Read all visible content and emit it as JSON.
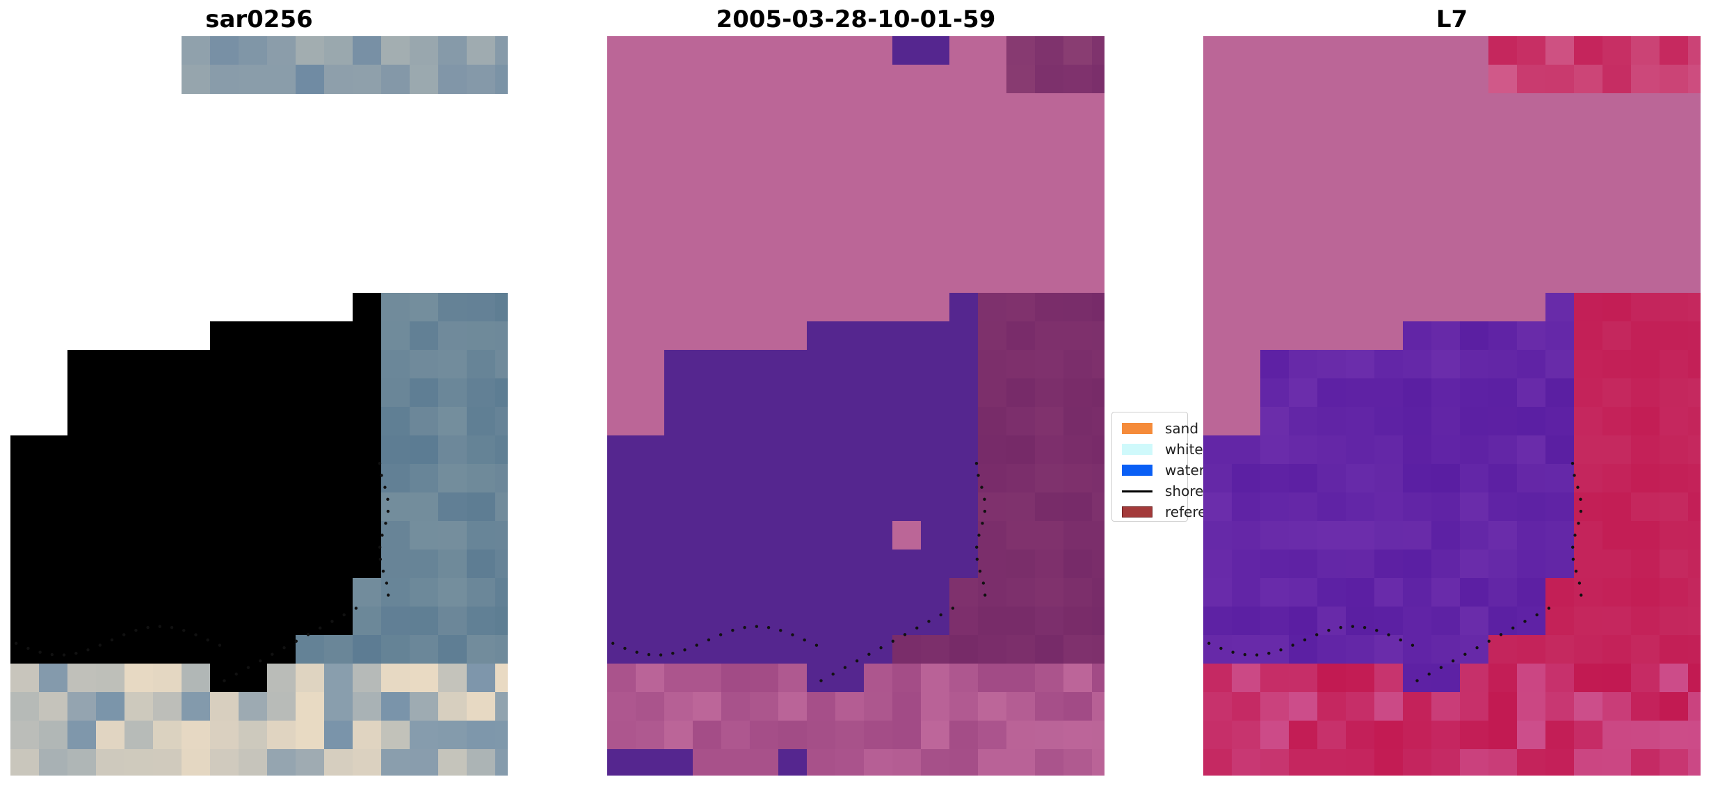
{
  "panels": [
    {
      "title": "sar0256",
      "image": "rgb-satellite-image"
    },
    {
      "title": "2005-03-28-10-01-59",
      "image": "classified-image"
    },
    {
      "title": "L7",
      "image": "mndwi-image"
    }
  ],
  "legend": {
    "items": [
      {
        "label": "sand",
        "color": "#f58b3a",
        "kind": "patch"
      },
      {
        "label": "whitew",
        "color": "#cff9fb",
        "kind": "patch"
      },
      {
        "label": "water",
        "color": "#0a5ff5",
        "kind": "patch"
      },
      {
        "label": "shorel",
        "color": "#000000",
        "kind": "line"
      },
      {
        "label": "referen",
        "color": "#a33a3a",
        "kind": "patch"
      }
    ]
  },
  "colors": {
    "rgb_deep_water": "#3d6a93",
    "rgb_surf": "#e8f2f4",
    "rgb_land": "#5b7b92",
    "rgb_sand": "#ecdcc4",
    "class_land": "#bb6697",
    "class_water": "#55268f",
    "class_land_dark": "#762a68",
    "mndwi_land": "#bb6697",
    "mndwi_water": "#5a1ea2",
    "mndwi_sand": "#c21850",
    "shoreline": "#111111"
  }
}
